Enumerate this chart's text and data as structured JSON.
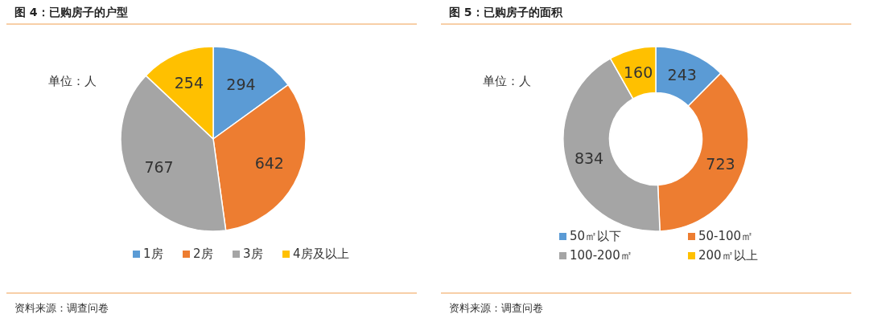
{
  "chart_data": [
    {
      "type": "pie",
      "title": "图 4：已购房子的户型",
      "categories": [
        "1房",
        "2房",
        "3房",
        "4房及以上"
      ],
      "values": [
        294,
        642,
        767,
        254
      ],
      "colors": [
        "#5b9bd5",
        "#ed7d31",
        "#a5a5a5",
        "#ffc000"
      ],
      "data_labels": true,
      "legend": "bottom",
      "annotations": [
        "单位：人",
        "资料来源：调查问卷"
      ]
    },
    {
      "type": "donut",
      "title": "图 5：已购房子的面积",
      "categories": [
        "50㎡以下",
        "50-100㎡",
        "100-200㎡",
        "200㎡以上"
      ],
      "values": [
        243,
        723,
        834,
        160
      ],
      "colors": [
        "#5b9bd5",
        "#ed7d31",
        "#a5a5a5",
        "#ffc000"
      ],
      "data_labels": true,
      "legend": "bottom",
      "annotations": [
        "单位：人",
        "资料来源：调查问卷"
      ]
    }
  ]
}
